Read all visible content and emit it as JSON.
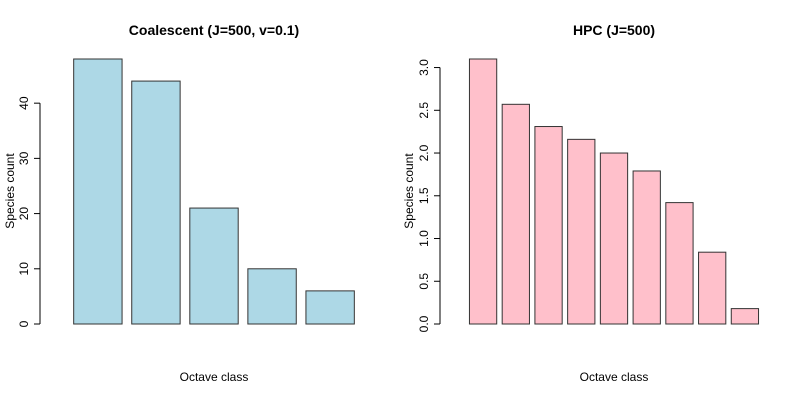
{
  "chart_data": [
    {
      "type": "bar",
      "title": "Coalescent (J=500, v=0.1)",
      "xlabel": "Octave class",
      "ylabel": "Species count",
      "values": [
        48,
        44,
        21,
        10,
        6
      ],
      "ylim": [
        0,
        48
      ],
      "yticks": [
        0,
        10,
        20,
        30,
        40
      ],
      "ytick_labels": [
        "0",
        "10",
        "20",
        "30",
        "40"
      ],
      "bar_color": "#add8e6",
      "grid": false
    },
    {
      "type": "bar",
      "title": "HPC (J=500)",
      "xlabel": "Octave class",
      "ylabel": "Species count",
      "values": [
        3.1,
        2.57,
        2.31,
        2.16,
        2.0,
        1.79,
        1.42,
        0.84,
        0.18
      ],
      "ylim": [
        0,
        3.1
      ],
      "yticks": [
        0,
        0.5,
        1.0,
        1.5,
        2.0,
        2.5,
        3.0
      ],
      "ytick_labels": [
        "0.0",
        "0.5",
        "1.0",
        "1.5",
        "2.0",
        "2.5",
        "3.0"
      ],
      "bar_color": "#ffc0cb",
      "grid": false
    }
  ]
}
